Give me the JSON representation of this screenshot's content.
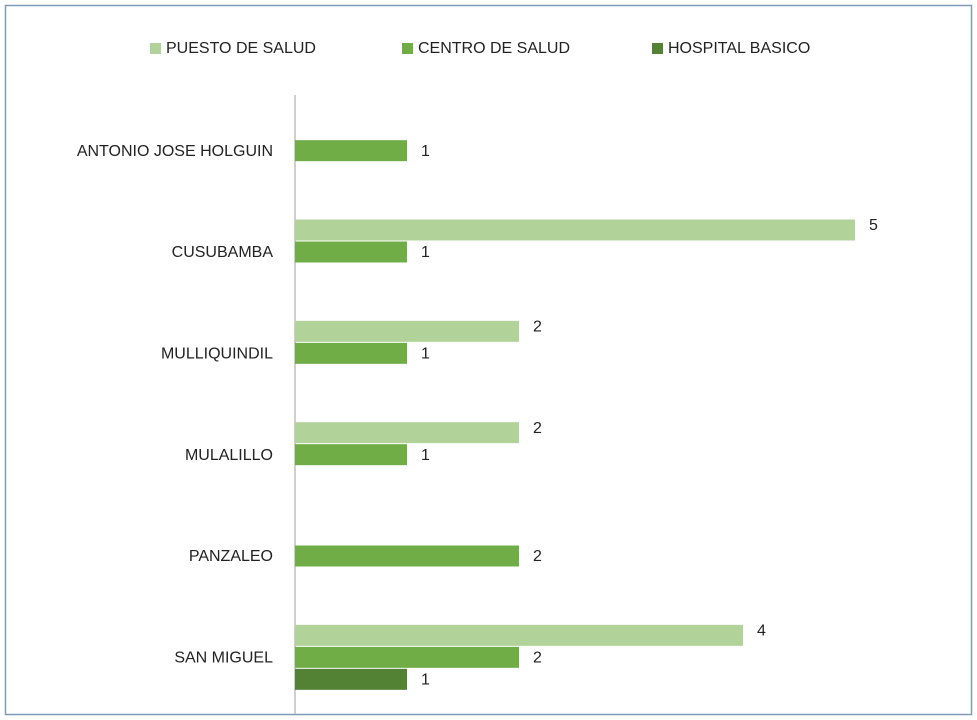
{
  "chart_data": {
    "type": "bar",
    "orientation": "horizontal",
    "categories": [
      "ANTONIO JOSE HOLGUIN",
      "CUSUBAMBA",
      "MULLIQUINDIL",
      "MULALILLO",
      "PANZALEO",
      "SAN MIGUEL"
    ],
    "series": [
      {
        "name": "PUESTO DE SALUD",
        "color": "#b1d39a",
        "values": [
          null,
          5,
          2,
          2,
          null,
          4
        ]
      },
      {
        "name": "CENTRO DE SALUD",
        "color": "#70ad47",
        "values": [
          1,
          1,
          1,
          1,
          2,
          2
        ]
      },
      {
        "name": "HOSPITAL BASICO",
        "color": "#548235",
        "values": [
          null,
          null,
          null,
          null,
          null,
          1
        ]
      }
    ],
    "legend": "top"
  }
}
